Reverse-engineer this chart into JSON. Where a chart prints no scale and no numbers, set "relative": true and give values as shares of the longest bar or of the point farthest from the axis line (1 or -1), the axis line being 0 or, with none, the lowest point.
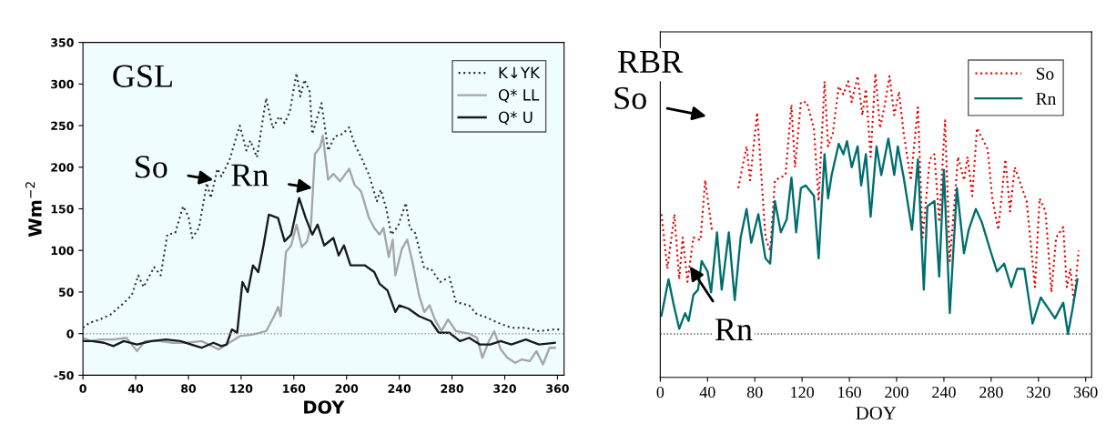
{
  "chart_data": [
    {
      "type": "line",
      "xlabel": "DOY",
      "ylabel": "Wm$^{−2}$",
      "xlim": [
        0,
        365
      ],
      "ylim": [
        -50,
        350
      ],
      "xticks": [
        0,
        40,
        80,
        120,
        160,
        200,
        240,
        280,
        320,
        360
      ],
      "yticks": [
        -50,
        0,
        50,
        100,
        150,
        200,
        250,
        300,
        350
      ],
      "grid": false,
      "legend": "top right",
      "marker": "none",
      "ref_lines": [
        {
          "axis": "y",
          "value": 0,
          "color": "#9a9a9a",
          "line_style": "dotted"
        }
      ],
      "annotations": [
        "GSL",
        {
          "text": "So",
          "x": 99,
          "y": 185
        },
        {
          "text": "Rn",
          "x": 174,
          "y": 175
        }
      ],
      "series": [
        {
          "name": "K↓YK",
          "color": "#333333",
          "line_style": "dotted",
          "x": [
            0,
            5,
            13,
            21,
            29,
            37,
            42,
            46,
            54,
            59,
            64,
            70,
            76,
            80,
            83,
            88,
            94,
            97,
            102,
            105,
            111,
            119,
            124,
            127,
            132,
            139,
            144,
            149,
            153,
            157,
            162,
            165,
            168,
            172,
            174,
            181,
            186,
            191,
            197,
            202,
            206,
            211,
            217,
            223,
            226,
            230,
            234,
            239,
            245,
            248,
            252,
            259,
            264,
            271,
            278,
            283,
            288,
            293,
            299,
            304,
            315,
            325,
            336,
            346,
            357,
            363
          ],
          "values": [
            7,
            13,
            17,
            23,
            34,
            46,
            70,
            56,
            80,
            70,
            119,
            121,
            153,
            141,
            115,
            127,
            181,
            163,
            198,
            189,
            208,
            250,
            220,
            232,
            212,
            283,
            247,
            261,
            253,
            267,
            313,
            285,
            305,
            291,
            240,
            277,
            220,
            237,
            240,
            248,
            228,
            212,
            191,
            159,
            173,
            151,
            119,
            129,
            157,
            127,
            121,
            78,
            78,
            62,
            68,
            38,
            36,
            34,
            23,
            21,
            13,
            7,
            7,
            3,
            5,
            5
          ]
        },
        {
          "name": "Q* LL",
          "color": "#a6a6a6",
          "line_style": "solid",
          "x": [
            0,
            6,
            13,
            23,
            33,
            41,
            47,
            58,
            68,
            79,
            90,
            103,
            109,
            119,
            129,
            139,
            145,
            148,
            150,
            154,
            158,
            162,
            166,
            170,
            173,
            176,
            180,
            182,
            186,
            190,
            195,
            202,
            206,
            211,
            217,
            221,
            225,
            228,
            232,
            235,
            237,
            242,
            246,
            250,
            255,
            259,
            263,
            267,
            272,
            277,
            283,
            293,
            299,
            303,
            308,
            312,
            317,
            322,
            328,
            333,
            339,
            344,
            349,
            354,
            358
          ],
          "values": [
            -5,
            -9,
            -7,
            -7,
            -5,
            -21,
            -9,
            -9,
            -11,
            -11,
            -9,
            -19,
            -13,
            -3,
            -1,
            3,
            21,
            32,
            21,
            98,
            106,
            131,
            104,
            111,
            131,
            216,
            224,
            238,
            185,
            192,
            183,
            198,
            179,
            171,
            139,
            127,
            119,
            127,
            92,
            113,
            70,
            102,
            113,
            86,
            46,
            26,
            34,
            17,
            3,
            17,
            3,
            0,
            -5,
            -29,
            -9,
            3,
            -19,
            -29,
            -35,
            -31,
            -33,
            -21,
            -37,
            -17,
            -17
          ]
        },
        {
          "name": "Q* U",
          "color": "#1a1a1a",
          "line_style": "solid",
          "x": [
            0,
            7,
            16,
            23,
            31,
            41,
            52,
            63,
            74,
            82,
            90,
            99,
            105,
            109,
            113,
            117,
            121,
            125,
            129,
            133,
            137,
            141,
            148,
            153,
            158,
            164,
            169,
            174,
            178,
            183,
            190,
            194,
            198,
            203,
            214,
            221,
            225,
            231,
            237,
            240,
            247,
            255,
            264,
            270,
            278,
            286,
            293,
            301,
            309,
            317,
            325,
            336,
            346,
            358
          ],
          "values": [
            -9,
            -9,
            -11,
            -15,
            -9,
            -13,
            -9,
            -7,
            -9,
            -13,
            -17,
            -11,
            -15,
            -13,
            5,
            1,
            62,
            50,
            82,
            74,
            106,
            143,
            139,
            111,
            119,
            163,
            139,
            119,
            131,
            106,
            115,
            94,
            106,
            82,
            82,
            74,
            60,
            52,
            26,
            34,
            30,
            21,
            15,
            1,
            1,
            -9,
            -5,
            -13,
            -13,
            -9,
            -13,
            -7,
            -13,
            -11
          ]
        }
      ]
    },
    {
      "type": "line",
      "xlabel": "DOY",
      "relative": true,
      "xlim": [
        0,
        365
      ],
      "xticks": [
        0,
        40,
        80,
        120,
        160,
        200,
        240,
        280,
        320,
        360
      ],
      "grid": false,
      "legend": "top right",
      "marker": "none",
      "tick_labels": "x",
      "ref_lines": [
        {
          "axis": "y",
          "value": 0,
          "color": "#555555",
          "line_style": "dotted"
        }
      ],
      "annotations": [
        "RBR",
        "So",
        {
          "text": "Rn",
          "x": 25,
          "y": 0.26
        }
      ],
      "series": [
        {
          "name": "So",
          "color": "#e00000",
          "line_style": "dotted",
          "x": [
            1,
            6,
            12,
            16,
            19,
            23,
            28,
            34,
            38,
            44,
            55,
            66,
            73,
            76,
            82,
            89,
            93,
            97,
            106,
            111,
            114,
            119,
            124,
            130,
            134,
            139,
            142,
            146,
            151,
            155,
            159,
            162,
            167,
            171,
            174,
            178,
            182,
            186,
            190,
            194,
            198,
            202,
            206,
            212,
            218,
            222,
            228,
            232,
            236,
            241,
            245,
            252,
            257,
            260,
            264,
            268,
            277,
            281,
            286,
            292,
            296,
            300,
            310,
            317,
            321,
            326,
            331,
            335,
            341,
            344,
            347,
            350,
            354
          ],
          "values": [
            0.46,
            0.25,
            0.46,
            0.21,
            0.37,
            0.2,
            0.37,
            0.36,
            0.59,
            0.39,
            null,
            0.56,
            0.72,
            0.59,
            0.85,
            0.37,
            0.32,
            0.59,
            0.61,
            0.88,
            0.64,
            0.89,
            0.89,
            0.79,
            0.51,
            0.97,
            0.72,
            0.77,
            0.95,
            0.92,
            0.97,
            0.89,
            0.99,
            0.84,
            0.94,
            0.68,
            1.0,
            0.79,
            0.88,
            0.99,
            0.84,
            0.93,
            0.77,
            0.59,
            0.87,
            0.37,
            0.67,
            0.69,
            0.43,
            0.82,
            0.28,
            0.68,
            0.59,
            0.68,
            0.53,
            0.79,
            0.71,
            0.52,
            0.4,
            0.67,
            0.47,
            0.64,
            0.51,
            0.18,
            0.52,
            0.47,
            0.16,
            0.37,
            0.41,
            0.18,
            0.25,
            0.12,
            0.32
          ]
        },
        {
          "name": "Rn",
          "color": "#006e6e",
          "line_style": "solid",
          "x": [
            1,
            7,
            11,
            16,
            21,
            24,
            28,
            32,
            35,
            40,
            43,
            48,
            52,
            58,
            63,
            68,
            73,
            77,
            83,
            89,
            93,
            97,
            102,
            107,
            111,
            115,
            119,
            123,
            130,
            134,
            139,
            142,
            145,
            151,
            155,
            158,
            162,
            167,
            170,
            174,
            178,
            183,
            187,
            193,
            198,
            201,
            206,
            213,
            218,
            223,
            226,
            232,
            236,
            240,
            245,
            251,
            257,
            261,
            267,
            272,
            280,
            285,
            291,
            297,
            302,
            308,
            315,
            322,
            328,
            334,
            341,
            345,
            349,
            353
          ],
          "values": [
            0.07,
            0.21,
            0.12,
            0.02,
            0.08,
            0.05,
            0.15,
            0.17,
            0.28,
            0.24,
            0.16,
            0.39,
            0.17,
            0.39,
            0.13,
            0.37,
            0.48,
            0.35,
            0.46,
            0.29,
            0.27,
            0.51,
            0.39,
            0.44,
            0.6,
            0.39,
            0.56,
            0.57,
            0.53,
            0.29,
            0.69,
            0.52,
            0.61,
            0.73,
            0.69,
            0.74,
            0.64,
            0.72,
            0.57,
            0.69,
            0.45,
            0.72,
            0.61,
            0.75,
            0.61,
            0.72,
            0.6,
            0.4,
            0.67,
            0.17,
            0.49,
            0.51,
            0.22,
            0.63,
            0.08,
            0.56,
            0.31,
            0.4,
            0.48,
            0.43,
            0.31,
            0.24,
            0.27,
            0.18,
            0.25,
            0.25,
            0.04,
            0.14,
            0.1,
            0.06,
            0.12,
            0.0,
            0.1,
            0.21
          ]
        }
      ]
    }
  ]
}
